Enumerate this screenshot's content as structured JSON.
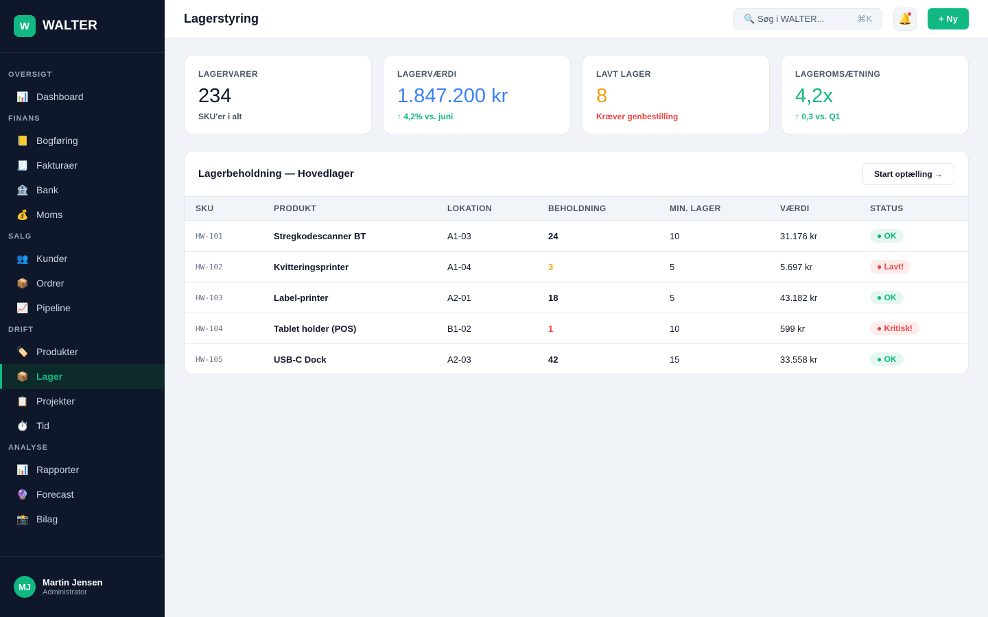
{
  "brand": {
    "logo": "W",
    "name": "WALTER"
  },
  "nav": {
    "sections": [
      {
        "title": "OVERSIGT",
        "items": [
          {
            "icon": "📊",
            "icon_name": "chart-icon",
            "label": "Dashboard"
          }
        ]
      },
      {
        "title": "FINANS",
        "items": [
          {
            "icon": "📒",
            "icon_name": "ledger-icon",
            "label": "Bogføring"
          },
          {
            "icon": "🧾",
            "icon_name": "receipt-icon",
            "label": "Fakturaer"
          },
          {
            "icon": "🏦",
            "icon_name": "bank-icon",
            "label": "Bank"
          },
          {
            "icon": "💰",
            "icon_name": "money-bag-icon",
            "label": "Moms"
          }
        ]
      },
      {
        "title": "SALG",
        "items": [
          {
            "icon": "👥",
            "icon_name": "people-icon",
            "label": "Kunder"
          },
          {
            "icon": "📦",
            "icon_name": "package-icon",
            "label": "Ordrer"
          },
          {
            "icon": "📈",
            "icon_name": "trend-up-icon",
            "label": "Pipeline"
          }
        ]
      },
      {
        "title": "DRIFT",
        "items": [
          {
            "icon": "🏷️",
            "icon_name": "tag-icon",
            "label": "Produkter"
          },
          {
            "icon": "📦",
            "icon_name": "package-icon",
            "label": "Lager",
            "active": true
          },
          {
            "icon": "📋",
            "icon_name": "clipboard-icon",
            "label": "Projekter"
          },
          {
            "icon": "⏱️",
            "icon_name": "stopwatch-icon",
            "label": "Tid"
          }
        ]
      },
      {
        "title": "ANALYSE",
        "items": [
          {
            "icon": "📊",
            "icon_name": "chart-icon",
            "label": "Rapporter"
          },
          {
            "icon": "🔮",
            "icon_name": "crystal-ball-icon",
            "label": "Forecast"
          },
          {
            "icon": "📸",
            "icon_name": "camera-icon",
            "label": "Bilag"
          }
        ]
      }
    ]
  },
  "user": {
    "initials": "MJ",
    "name": "Martin Jensen",
    "role": "Administrator"
  },
  "header": {
    "title": "Lagerstyring",
    "search_placeholder": "🔍 Søg i WALTER...",
    "search_shortcut": "⌘K",
    "bell_icon": "🔔",
    "new_button": "+ Ny"
  },
  "kpis": [
    {
      "label": "LAGERVARER",
      "value": "234",
      "sub": "SKU'er i alt",
      "value_color": "#0f172a",
      "sub_color": "#475569"
    },
    {
      "label": "LAGERVÆRDI",
      "value": "1.847.200 kr",
      "sub": "↑ 4,2% vs. juni",
      "value_color": "#3b82f6",
      "sub_color": "#10b981"
    },
    {
      "label": "LAVT LAGER",
      "value": "8",
      "sub": "Kræver genbestilling",
      "value_color": "#f59e0b",
      "sub_color": "#ef4444"
    },
    {
      "label": "LAGEROMSÆTNING",
      "value": "4,2x",
      "sub": "↑ 0,3 vs. Q1",
      "value_color": "#10b981",
      "sub_color": "#10b981"
    }
  ],
  "inventory": {
    "title": "Lagerbeholdning — Hovedlager",
    "count_button": "Start optælling →",
    "columns": [
      "SKU",
      "PRODUKT",
      "LOKATION",
      "BEHOLDNING",
      "MIN. LAGER",
      "VÆRDI",
      "STATUS"
    ],
    "rows": [
      {
        "sku": "HW-101",
        "product": "Stregkodescanner BT",
        "location": "A1-03",
        "stock": "24",
        "stock_color": "#0f172a",
        "min": "10",
        "value": "31.176 kr",
        "status": "● OK",
        "status_fg": "#10b981",
        "status_bg": "#e6f7f0"
      },
      {
        "sku": "HW-102",
        "product": "Kvitteringsprinter",
        "location": "A1-04",
        "stock": "3",
        "stock_color": "#f59e0b",
        "min": "5",
        "value": "5.697 kr",
        "status": "● Lavt!",
        "status_fg": "#ef4444",
        "status_bg": "#fdecec"
      },
      {
        "sku": "HW-103",
        "product": "Label-printer",
        "location": "A2-01",
        "stock": "18",
        "stock_color": "#0f172a",
        "min": "5",
        "value": "43.182 kr",
        "status": "● OK",
        "status_fg": "#10b981",
        "status_bg": "#e6f7f0"
      },
      {
        "sku": "HW-104",
        "product": "Tablet holder (POS)",
        "location": "B1-02",
        "stock": "1",
        "stock_color": "#ef4444",
        "min": "10",
        "value": "599 kr",
        "status": "● Kritisk!",
        "status_fg": "#ef4444",
        "status_bg": "#fdecec"
      },
      {
        "sku": "HW-105",
        "product": "USB-C Dock",
        "location": "A2-03",
        "stock": "42",
        "stock_color": "#0f172a",
        "min": "15",
        "value": "33.558 kr",
        "status": "● OK",
        "status_fg": "#10b981",
        "status_bg": "#e6f7f0"
      }
    ]
  }
}
